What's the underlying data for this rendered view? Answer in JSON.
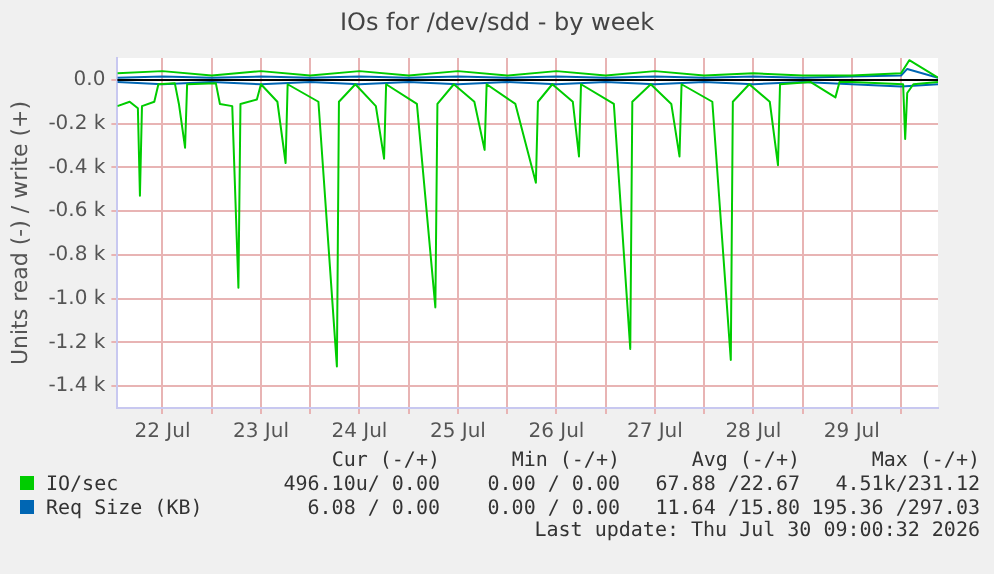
{
  "chart_data": {
    "type": "line",
    "title": "IOs for /dev/sdd - by week",
    "ylabel": "Units read (-) / write (+)",
    "xlim": [
      "2026-07-22T01:00",
      "2026-07-30T09:00"
    ],
    "xticks": [
      {
        "value": "2026-07-22T12:00",
        "label": "22 Jul"
      },
      {
        "value": "2026-07-23T00:00",
        "label": null
      },
      {
        "value": "2026-07-23T12:00",
        "label": "23 Jul"
      },
      {
        "value": "2026-07-24T00:00",
        "label": null
      },
      {
        "value": "2026-07-24T12:00",
        "label": "24 Jul"
      },
      {
        "value": "2026-07-25T00:00",
        "label": null
      },
      {
        "value": "2026-07-25T12:00",
        "label": "25 Jul"
      },
      {
        "value": "2026-07-26T00:00",
        "label": null
      },
      {
        "value": "2026-07-26T12:00",
        "label": "26 Jul"
      },
      {
        "value": "2026-07-27T00:00",
        "label": null
      },
      {
        "value": "2026-07-27T12:00",
        "label": "27 Jul"
      },
      {
        "value": "2026-07-28T00:00",
        "label": null
      },
      {
        "value": "2026-07-28T12:00",
        "label": "28 Jul"
      },
      {
        "value": "2026-07-29T00:00",
        "label": null
      },
      {
        "value": "2026-07-29T12:00",
        "label": "29 Jul"
      },
      {
        "value": "2026-07-30T00:00",
        "label": null
      }
    ],
    "ylim": [
      -1500,
      100
    ],
    "yticks": [
      {
        "value": 0,
        "label": "0.0"
      },
      {
        "value": -200,
        "label": "-0.2 k"
      },
      {
        "value": -400,
        "label": "-0.4 k"
      },
      {
        "value": -600,
        "label": "-0.6 k"
      },
      {
        "value": -800,
        "label": "-0.8 k"
      },
      {
        "value": -1000,
        "label": "-1.0 k"
      },
      {
        "value": -1200,
        "label": "-1.2 k"
      },
      {
        "value": -1400,
        "label": "-1.4 k"
      }
    ],
    "grid": true,
    "legend": "bottom left",
    "marker": "none",
    "line_style": "solid",
    "ref_lines": [
      {
        "axis": "y",
        "value": 0,
        "color": "#000000"
      }
    ],
    "series": [
      {
        "name": "IO/sec",
        "color": "#00cc00",
        "x": [
          "2026-07-22T01:00",
          "2026-07-22T04:00",
          "2026-07-22T06:00",
          "2026-07-22T06:30",
          "2026-07-22T07:00",
          "2026-07-22T10:00",
          "2026-07-22T11:00",
          "2026-07-22T15:00",
          "2026-07-22T16:00",
          "2026-07-22T17:30",
          "2026-07-22T18:00",
          "2026-07-23T01:00",
          "2026-07-23T02:00",
          "2026-07-23T05:00",
          "2026-07-23T06:30",
          "2026-07-23T07:00",
          "2026-07-23T11:00",
          "2026-07-23T12:00",
          "2026-07-23T16:00",
          "2026-07-23T18:00",
          "2026-07-23T18:30",
          "2026-07-24T02:00",
          "2026-07-24T06:30",
          "2026-07-24T07:00",
          "2026-07-24T11:00",
          "2026-07-24T16:00",
          "2026-07-24T18:00",
          "2026-07-24T18:30",
          "2026-07-25T02:00",
          "2026-07-25T06:30",
          "2026-07-25T07:00",
          "2026-07-25T11:00",
          "2026-07-25T16:00",
          "2026-07-25T18:30",
          "2026-07-25T19:00",
          "2026-07-26T02:00",
          "2026-07-26T07:00",
          "2026-07-26T07:30",
          "2026-07-26T11:00",
          "2026-07-26T16:00",
          "2026-07-26T17:30",
          "2026-07-26T18:00",
          "2026-07-27T02:00",
          "2026-07-27T06:00",
          "2026-07-27T06:30",
          "2026-07-27T11:00",
          "2026-07-27T16:00",
          "2026-07-27T18:00",
          "2026-07-27T18:30",
          "2026-07-28T02:00",
          "2026-07-28T06:30",
          "2026-07-28T07:00",
          "2026-07-28T11:00",
          "2026-07-28T16:00",
          "2026-07-28T18:00",
          "2026-07-28T18:30",
          "2026-07-29T02:00",
          "2026-07-29T08:00",
          "2026-07-29T09:00",
          "2026-07-29T12:00",
          "2026-07-30T00:30",
          "2026-07-30T01:00",
          "2026-07-30T01:30",
          "2026-07-30T03:00",
          "2026-07-30T09:00"
        ],
        "values": [
          -120,
          -100,
          -130,
          -530,
          -120,
          -100,
          -20,
          -15,
          -110,
          -310,
          -20,
          -15,
          -110,
          -120,
          -950,
          -110,
          -90,
          -20,
          -100,
          -380,
          -20,
          -100,
          -1310,
          -100,
          -20,
          -120,
          -360,
          -20,
          -110,
          -1040,
          -110,
          -20,
          -100,
          -320,
          -20,
          -110,
          -470,
          -100,
          -20,
          -100,
          -350,
          -20,
          -110,
          -1230,
          -100,
          -20,
          -110,
          -350,
          -20,
          -100,
          -1280,
          -100,
          -20,
          -100,
          -390,
          -20,
          -10,
          -80,
          -10,
          -10,
          -20,
          -270,
          -60,
          -20,
          -10
        ]
      },
      {
        "color": "#00cc00",
        "x": [
          "2026-07-22T01:00",
          "2026-07-22T12:00",
          "2026-07-23T00:00",
          "2026-07-23T12:00",
          "2026-07-24T00:00",
          "2026-07-24T12:00",
          "2026-07-25T00:00",
          "2026-07-25T12:00",
          "2026-07-26T00:00",
          "2026-07-26T12:00",
          "2026-07-27T00:00",
          "2026-07-27T12:00",
          "2026-07-28T00:00",
          "2026-07-28T12:00",
          "2026-07-29T00:00",
          "2026-07-29T12:00",
          "2026-07-30T00:00",
          "2026-07-30T02:00",
          "2026-07-30T09:00"
        ],
        "values": [
          30,
          40,
          20,
          40,
          20,
          40,
          20,
          40,
          20,
          40,
          20,
          40,
          20,
          30,
          20,
          20,
          30,
          90,
          10
        ]
      },
      {
        "name": "Req Size (KB)",
        "color": "#0066b3",
        "x": [
          "2026-07-22T01:00",
          "2026-07-22T12:00",
          "2026-07-23T00:00",
          "2026-07-23T12:00",
          "2026-07-24T00:00",
          "2026-07-24T12:00",
          "2026-07-25T00:00",
          "2026-07-25T12:00",
          "2026-07-26T00:00",
          "2026-07-26T12:00",
          "2026-07-27T00:00",
          "2026-07-27T12:00",
          "2026-07-28T00:00",
          "2026-07-28T12:00",
          "2026-07-29T00:00",
          "2026-07-29T12:00",
          "2026-07-30T00:00",
          "2026-07-30T09:00"
        ],
        "values": [
          -10,
          -20,
          -10,
          -20,
          -10,
          -20,
          -10,
          -20,
          -10,
          -20,
          -10,
          -20,
          -10,
          -20,
          -10,
          -20,
          -30,
          -20
        ]
      },
      {
        "color": "#0066b3",
        "x": [
          "2026-07-22T01:00",
          "2026-07-22T12:00",
          "2026-07-23T00:00",
          "2026-07-23T12:00",
          "2026-07-24T00:00",
          "2026-07-24T12:00",
          "2026-07-25T00:00",
          "2026-07-25T12:00",
          "2026-07-26T00:00",
          "2026-07-26T12:00",
          "2026-07-27T00:00",
          "2026-07-27T12:00",
          "2026-07-28T00:00",
          "2026-07-28T12:00",
          "2026-07-29T00:00",
          "2026-07-29T12:00",
          "2026-07-30T00:00",
          "2026-07-30T01:30",
          "2026-07-30T09:00"
        ],
        "values": [
          10,
          15,
          10,
          15,
          10,
          15,
          10,
          15,
          10,
          15,
          10,
          15,
          10,
          15,
          10,
          15,
          20,
          50,
          10
        ]
      }
    ],
    "annotations": [
      "Cur (-/+)",
      "Min (-/+)",
      "Avg (-/+)",
      "Max (-/+)",
      "496.10u/ 0.00",
      "0.00 / 0.00",
      "67.88 /22.67",
      "4.51k/231.12",
      "6.08 / 0.00",
      "0.00 / 0.00",
      "11.64 /15.80",
      "195.36 /297.03",
      "Last update: Thu Jul 30 09:00:32 2026"
    ]
  }
}
